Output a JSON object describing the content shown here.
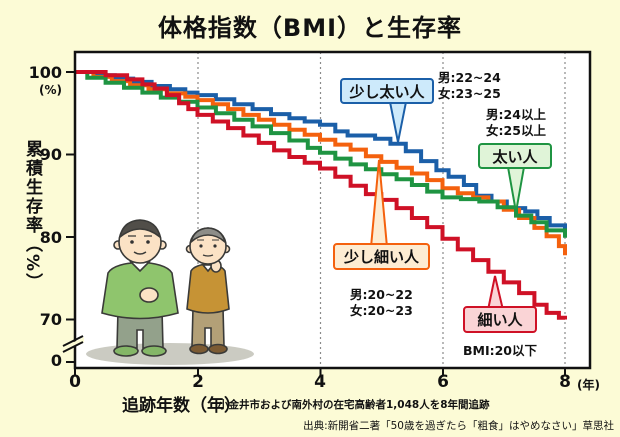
{
  "title": "体格指数（BMI）と生存率",
  "y_axis": {
    "label": "累積生存率（%）",
    "unit_label": "(%)",
    "ticks": [
      "100",
      "90",
      "80",
      "70",
      "0"
    ]
  },
  "x_axis": {
    "label": "追跡年数（年）",
    "unit_label": "(年)",
    "ticks": [
      "0",
      "2",
      "4",
      "6",
      "8"
    ],
    "note": "小金井市および南外村の在宅高齢者1,048人を8年間追跡"
  },
  "source": "出典:新開省二著「50歳を過ぎたら「粗食」はやめなさい」草思社",
  "callouts": {
    "slightly_fat": {
      "label": "少し太い人",
      "detail_line1": "男:22~24",
      "detail_line2": "女:23~25",
      "box_fill": "#cdeafb",
      "border": "#1b5fa8"
    },
    "fat": {
      "label": "太い人",
      "detail_line1": "男:24以上",
      "detail_line2": "女:25以上",
      "box_fill": "#e0f4d8",
      "border": "#1f9442"
    },
    "slightly_thin": {
      "label": "少し細い人",
      "detail_line1": "男:20~22",
      "detail_line2": "女:20~23",
      "box_fill": "#fdecd2",
      "border": "#f4610e"
    },
    "thin": {
      "label": "細い人",
      "detail_line1": "BMI:20以下",
      "box_fill": "#fad4d6",
      "border": "#cf1126"
    }
  },
  "chart_data": {
    "type": "line",
    "step": true,
    "title": "体格指数（BMI）と生存率",
    "xlabel": "追跡年数（年）",
    "ylabel": "累積生存率（%）",
    "xlim": [
      0,
      8
    ],
    "ylim": [
      67,
      101
    ],
    "y_axis_break_to_zero": true,
    "grid": "vertical dashed lines at x = 2, 4, 6, 8",
    "legend_position": "callouts inside plot",
    "series": [
      {
        "id": "slightly_fat",
        "name": "少し太い人",
        "bmi_range": "男:22~24 女:23~25",
        "color": "#1b5fa8",
        "points": [
          [
            0,
            100
          ],
          [
            0.35,
            99.6
          ],
          [
            0.65,
            99.2
          ],
          [
            0.95,
            98.8
          ],
          [
            1.25,
            98.3
          ],
          [
            1.55,
            97.9
          ],
          [
            1.8,
            97.5
          ],
          [
            2,
            97.2
          ],
          [
            2.3,
            96.7
          ],
          [
            2.6,
            96.1
          ],
          [
            2.9,
            95.5
          ],
          [
            3.2,
            94.9
          ],
          [
            3.5,
            94.4
          ],
          [
            3.75,
            94
          ],
          [
            4,
            93.6
          ],
          [
            4.25,
            92.8
          ],
          [
            4.45,
            92.3
          ],
          [
            4.9,
            91.9
          ],
          [
            5.15,
            91.3
          ],
          [
            5.4,
            90.4
          ],
          [
            5.65,
            89.2
          ],
          [
            5.9,
            88.1
          ],
          [
            6.1,
            87.3
          ],
          [
            6.35,
            86.3
          ],
          [
            6.55,
            85
          ],
          [
            6.8,
            84.3
          ],
          [
            7.05,
            83.5
          ],
          [
            7.35,
            83.1
          ],
          [
            7.55,
            82.3
          ],
          [
            7.75,
            81.4
          ],
          [
            8,
            80.7
          ]
        ]
      },
      {
        "id": "slightly_thin",
        "name": "少し細い人",
        "bmi_range": "男:20~22 女:20~23",
        "color": "#f4610e",
        "points": [
          [
            0,
            100
          ],
          [
            0.3,
            99.4
          ],
          [
            0.6,
            98.9
          ],
          [
            0.9,
            98.4
          ],
          [
            1.2,
            97.9
          ],
          [
            1.5,
            97.4
          ],
          [
            1.8,
            97
          ],
          [
            2,
            96.6
          ],
          [
            2.25,
            96.1
          ],
          [
            2.5,
            95.5
          ],
          [
            2.75,
            94.8
          ],
          [
            3,
            94.2
          ],
          [
            3.25,
            93.6
          ],
          [
            3.5,
            93
          ],
          [
            3.75,
            92.4
          ],
          [
            4,
            91.8
          ],
          [
            4.25,
            91.2
          ],
          [
            4.5,
            90.6
          ],
          [
            4.75,
            89.8
          ],
          [
            5,
            89.1
          ],
          [
            5.25,
            88.4
          ],
          [
            5.5,
            87.7
          ],
          [
            5.75,
            86.9
          ],
          [
            6,
            85.9
          ],
          [
            6.25,
            85.3
          ],
          [
            6.5,
            84.8
          ],
          [
            6.75,
            84.3
          ],
          [
            7,
            83.3
          ],
          [
            7.25,
            82.3
          ],
          [
            7.5,
            81.1
          ],
          [
            7.7,
            80.1
          ],
          [
            7.9,
            78.9
          ],
          [
            8,
            77.8
          ]
        ]
      },
      {
        "id": "fat",
        "name": "太い人",
        "bmi_range": "男:24以上 女:25以上",
        "color": "#1f9442",
        "points": [
          [
            0,
            100
          ],
          [
            0.2,
            99.3
          ],
          [
            0.5,
            98.7
          ],
          [
            0.8,
            98.1
          ],
          [
            1.1,
            97.5
          ],
          [
            1.4,
            96.9
          ],
          [
            1.7,
            96.4
          ],
          [
            2,
            95.7
          ],
          [
            2.3,
            95
          ],
          [
            2.6,
            94.2
          ],
          [
            2.9,
            93.4
          ],
          [
            3.2,
            92.6
          ],
          [
            3.5,
            91.7
          ],
          [
            3.8,
            90.8
          ],
          [
            4,
            90.2
          ],
          [
            4.25,
            89.5
          ],
          [
            4.5,
            88.8
          ],
          [
            4.75,
            88.2
          ],
          [
            5,
            87.6
          ],
          [
            5.25,
            87
          ],
          [
            5.5,
            86.3
          ],
          [
            5.75,
            85.5
          ],
          [
            6,
            84.8
          ],
          [
            6.3,
            84.6
          ],
          [
            6.6,
            84.3
          ],
          [
            6.9,
            83.6
          ],
          [
            7.2,
            82.6
          ],
          [
            7.45,
            81.8
          ],
          [
            7.7,
            80.8
          ],
          [
            8,
            79.9
          ]
        ]
      },
      {
        "id": "thin",
        "name": "細い人",
        "bmi_range": "BMI:20以下",
        "color": "#cf1126",
        "points": [
          [
            0,
            100
          ],
          [
            0.5,
            99.6
          ],
          [
            0.85,
            99.1
          ],
          [
            1.1,
            98.5
          ],
          [
            1.3,
            98
          ],
          [
            1.5,
            97.2
          ],
          [
            1.7,
            96.2
          ],
          [
            1.85,
            95.5
          ],
          [
            2,
            94.8
          ],
          [
            2.25,
            94
          ],
          [
            2.5,
            93.2
          ],
          [
            2.75,
            92.3
          ],
          [
            3,
            91.4
          ],
          [
            3.25,
            90.5
          ],
          [
            3.5,
            89.7
          ],
          [
            3.75,
            89
          ],
          [
            4,
            88.3
          ],
          [
            4.25,
            87.3
          ],
          [
            4.5,
            86.2
          ],
          [
            4.75,
            85.2
          ],
          [
            5,
            84.5
          ],
          [
            5.25,
            83.5
          ],
          [
            5.5,
            82.3
          ],
          [
            5.75,
            81.2
          ],
          [
            6,
            79.8
          ],
          [
            6.25,
            78.5
          ],
          [
            6.5,
            77.2
          ],
          [
            6.75,
            75.8
          ],
          [
            7,
            74.5
          ],
          [
            7.25,
            73.2
          ],
          [
            7.5,
            71.8
          ],
          [
            7.7,
            70.8
          ],
          [
            7.9,
            70.2
          ],
          [
            8,
            70
          ]
        ]
      }
    ]
  }
}
